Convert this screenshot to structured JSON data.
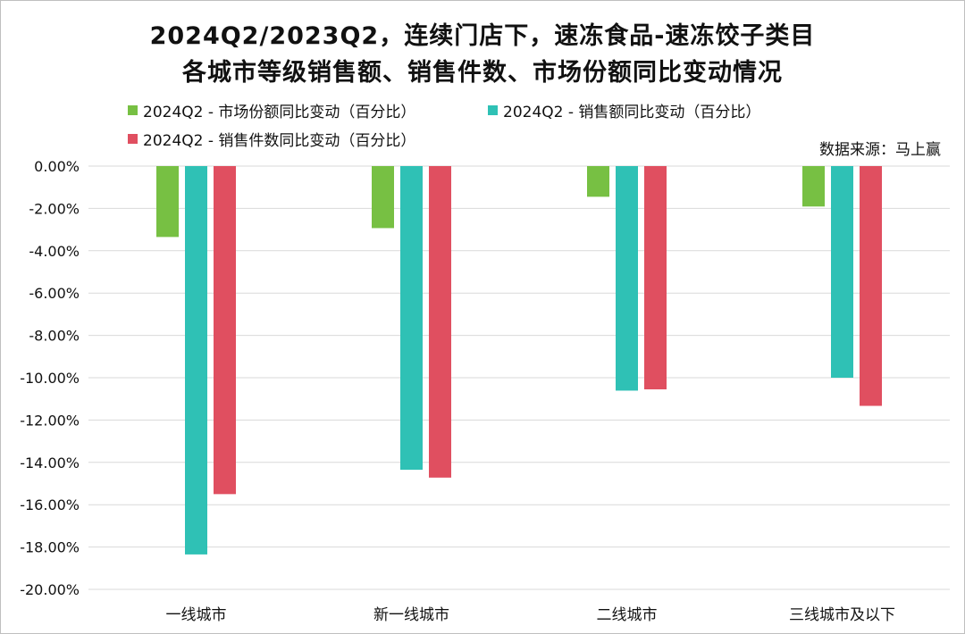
{
  "chart_data": {
    "type": "bar",
    "title_line1": "2024Q2/2023Q2，连续门店下，速冻食品-速冻饺子类目",
    "title_line2": "各城市等级销售额、销售件数、市场份额同比变动情况",
    "source": "数据来源：马上赢",
    "categories": [
      "一线城市",
      "新一线城市",
      "二线城市",
      "三线城市及以下"
    ],
    "series": [
      {
        "name": "2024Q2 - 市场份额同比变动（百分比）",
        "color": "#77c043",
        "values": [
          -3.35,
          -2.93,
          -1.45,
          -1.91
        ]
      },
      {
        "name": "2024Q2 - 销售额同比变动（百分比）",
        "color": "#2fc1b5",
        "values": [
          -18.35,
          -14.35,
          -10.61,
          -10.0
        ]
      },
      {
        "name": "2024Q2 - 销售件数同比变动（百分比）",
        "color": "#e04f60",
        "values": [
          -15.5,
          -14.72,
          -10.55,
          -11.33
        ]
      }
    ],
    "ylim": [
      -20,
      0
    ],
    "yticks": [
      "0.00%",
      "-2.00%",
      "-4.00%",
      "-6.00%",
      "-8.00%",
      "-10.00%",
      "-12.00%",
      "-14.00%",
      "-16.00%",
      "-18.00%",
      "-20.00%"
    ],
    "grid": true,
    "legend_position": "top"
  }
}
